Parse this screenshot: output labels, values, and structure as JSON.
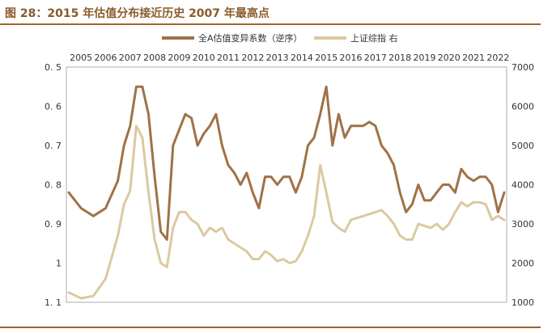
{
  "figure": {
    "title": "图 28：2015 年估值分布接近历史 2007 年最高点"
  },
  "colors": {
    "rule": "#A0652F",
    "title": "#8B5A2B",
    "series_valuation": "#A07246",
    "series_index": "#DCC9A0"
  },
  "chart_data": {
    "type": "line",
    "x": [
      2005.0,
      2005.5,
      2006.0,
      2006.5,
      2007.0,
      2007.25,
      2007.5,
      2007.75,
      2008.0,
      2008.25,
      2008.5,
      2008.75,
      2009.0,
      2009.25,
      2009.5,
      2009.75,
      2010.0,
      2010.25,
      2010.5,
      2010.75,
      2011.0,
      2011.25,
      2011.5,
      2011.75,
      2012.0,
      2012.25,
      2012.5,
      2012.75,
      2013.0,
      2013.25,
      2013.5,
      2013.75,
      2014.0,
      2014.25,
      2014.5,
      2014.75,
      2015.0,
      2015.25,
      2015.5,
      2015.75,
      2016.0,
      2016.25,
      2016.5,
      2016.75,
      2017.0,
      2017.25,
      2017.5,
      2017.75,
      2018.0,
      2018.25,
      2018.5,
      2018.75,
      2019.0,
      2019.25,
      2019.5,
      2019.75,
      2020.0,
      2020.25,
      2020.5,
      2020.75,
      2021.0,
      2021.25,
      2021.5,
      2021.75,
      2022.0,
      2022.25,
      2022.5,
      2022.75
    ],
    "series": [
      {
        "name": "全A估值变异系数（逆序）",
        "axis": "left",
        "values": [
          0.82,
          0.86,
          0.88,
          0.86,
          0.79,
          0.7,
          0.65,
          0.55,
          0.55,
          0.62,
          0.78,
          0.92,
          0.94,
          0.7,
          0.66,
          0.62,
          0.63,
          0.7,
          0.67,
          0.65,
          0.62,
          0.7,
          0.75,
          0.77,
          0.8,
          0.77,
          0.82,
          0.86,
          0.78,
          0.78,
          0.8,
          0.78,
          0.78,
          0.82,
          0.78,
          0.7,
          0.68,
          0.62,
          0.55,
          0.7,
          0.62,
          0.68,
          0.65,
          0.65,
          0.65,
          0.64,
          0.65,
          0.7,
          0.72,
          0.75,
          0.82,
          0.87,
          0.85,
          0.8,
          0.84,
          0.84,
          0.82,
          0.8,
          0.8,
          0.82,
          0.76,
          0.78,
          0.79,
          0.78,
          0.78,
          0.8,
          0.87,
          0.82
        ]
      },
      {
        "name": "上证综指 右",
        "axis": "right",
        "values": [
          1250,
          1100,
          1160,
          1600,
          2700,
          3500,
          3850,
          5500,
          5200,
          3800,
          2600,
          2000,
          1900,
          2900,
          3300,
          3300,
          3100,
          3000,
          2700,
          2900,
          2800,
          2900,
          2600,
          2500,
          2400,
          2300,
          2100,
          2100,
          2300,
          2200,
          2050,
          2100,
          2000,
          2050,
          2300,
          2700,
          3200,
          4500,
          3800,
          3050,
          2900,
          2800,
          3100,
          3150,
          3200,
          3250,
          3300,
          3350,
          3200,
          3000,
          2700,
          2600,
          2600,
          3000,
          2950,
          2900,
          3000,
          2850,
          3000,
          3300,
          3550,
          3450,
          3550,
          3550,
          3500,
          3100,
          3200,
          3100
        ]
      }
    ],
    "x_ticks": [
      "2005",
      "2006",
      "2007",
      "2008",
      "2009",
      "2010",
      "2011",
      "2012",
      "2013",
      "2014",
      "2015",
      "2016",
      "2017",
      "2018",
      "2019",
      "2020",
      "2021",
      "2022"
    ],
    "y_left_ticks": [
      "0. 5",
      "0. 6",
      "0. 7",
      "0. 8",
      "0. 9",
      "1",
      "1. 1"
    ],
    "y_right_ticks": [
      "7000",
      "6000",
      "5000",
      "4000",
      "3000",
      "2000",
      "1000"
    ],
    "xlim": [
      2004.9,
      2022.85
    ],
    "ylim_left": [
      1.1,
      0.5
    ],
    "ylim_left_inverted": true,
    "ylim_right": [
      1000,
      7000
    ],
    "grid": false,
    "legend_position": "top-right"
  }
}
